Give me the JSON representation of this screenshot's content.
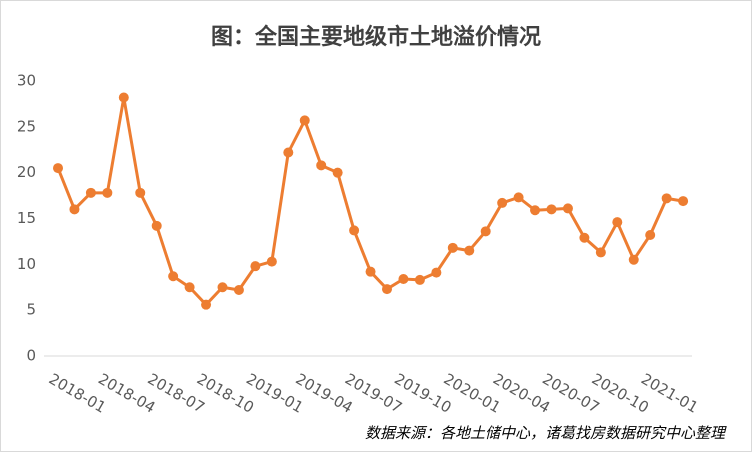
{
  "chart_data": {
    "type": "line",
    "title": "图：全国主要地级市土地溢价情况",
    "source": "数据来源：各地土储中心，诸葛找房数据研究中心整理",
    "categories": [
      "2018-01",
      null,
      null,
      "2018-04",
      null,
      null,
      "2018-07",
      null,
      null,
      "2018-10",
      null,
      null,
      "2019-01",
      null,
      null,
      "2019-04",
      null,
      null,
      "2019-07",
      null,
      null,
      "2019-10",
      null,
      null,
      "2020-01",
      null,
      null,
      "2020-04",
      null,
      null,
      "2020-07",
      null,
      null,
      "2020-10",
      null,
      null,
      "2021-01",
      null,
      null
    ],
    "values": [
      20.5,
      16.0,
      17.8,
      17.8,
      28.2,
      17.8,
      14.2,
      8.7,
      7.5,
      5.6,
      7.5,
      7.2,
      9.8,
      10.3,
      22.2,
      25.7,
      20.8,
      20.0,
      13.7,
      9.2,
      7.3,
      8.4,
      8.3,
      9.1,
      11.8,
      11.5,
      13.6,
      16.7,
      17.3,
      15.9,
      16.0,
      16.1,
      12.9,
      11.3,
      14.6,
      10.5,
      13.2,
      17.2,
      16.9
    ],
    "color": "#ed7d31",
    "ylim": [
      0,
      30
    ],
    "yticks": [
      0,
      5,
      10,
      15,
      20,
      25,
      30
    ]
  }
}
